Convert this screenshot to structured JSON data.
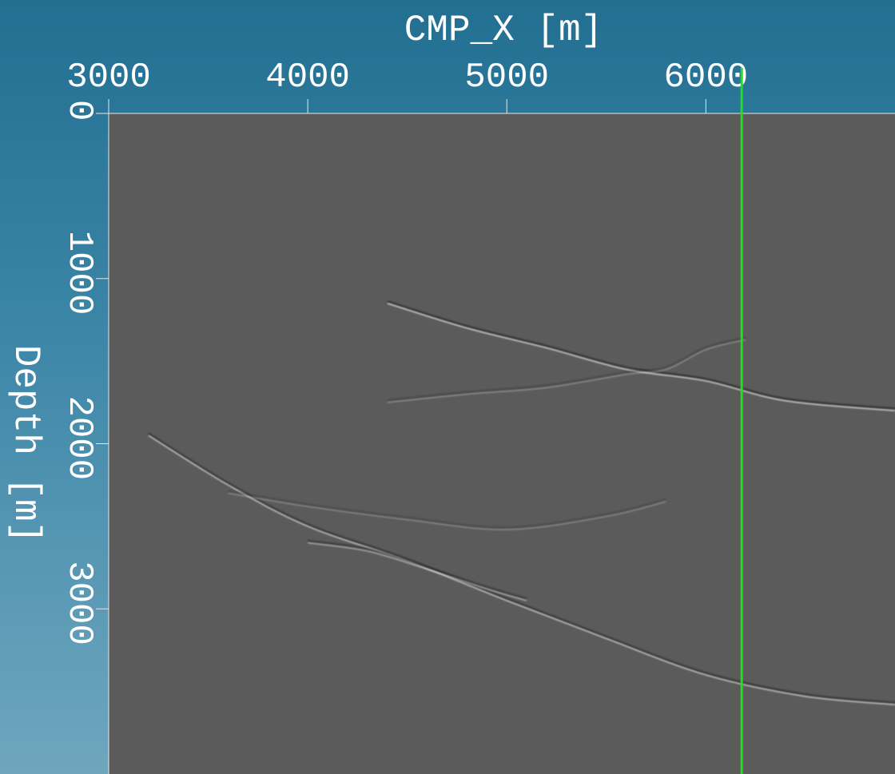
{
  "chart_data": {
    "type": "heatmap",
    "title": "",
    "xlabel": "CMP_X [m]",
    "ylabel": "Depth [m]",
    "x_axis_position": "top",
    "x_ticks": [
      3000,
      4000,
      5000,
      6000
    ],
    "y_ticks": [
      0,
      1000,
      2000,
      3000
    ],
    "x_tick_labels": [
      "3000",
      "4000",
      "5000",
      "6000"
    ],
    "y_tick_labels": [
      "0",
      "1000",
      "2000",
      "3000"
    ],
    "xlim": [
      3000,
      6950
    ],
    "ylim": [
      0,
      4000
    ],
    "y_inverted": true,
    "grid": false,
    "colormap": "grayscale",
    "image_background": "#5b5b5b",
    "marker_line": {
      "x": 6180,
      "color": "#22dd22"
    },
    "reflector_events": [
      {
        "name": "",
        "points": [
          [
            4400,
            1150
          ],
          [
            4800,
            1300
          ],
          [
            5200,
            1420
          ],
          [
            5600,
            1550
          ],
          [
            6000,
            1620
          ],
          [
            6400,
            1740
          ],
          [
            6950,
            1800
          ]
        ]
      },
      {
        "name": "",
        "points": [
          [
            4400,
            1750
          ],
          [
            4800,
            1700
          ],
          [
            5200,
            1660
          ],
          [
            5600,
            1580
          ],
          [
            5800,
            1550
          ],
          [
            6000,
            1430
          ],
          [
            6200,
            1370
          ]
        ]
      },
      {
        "name": "",
        "points": [
          [
            3200,
            1950
          ],
          [
            3600,
            2250
          ],
          [
            4000,
            2500
          ],
          [
            4500,
            2710
          ],
          [
            5000,
            2950
          ],
          [
            5500,
            3180
          ],
          [
            6000,
            3400
          ],
          [
            6500,
            3530
          ],
          [
            6950,
            3580
          ]
        ]
      },
      {
        "name": "",
        "points": [
          [
            3600,
            2300
          ],
          [
            4000,
            2380
          ],
          [
            4500,
            2460
          ],
          [
            5000,
            2520
          ],
          [
            5500,
            2440
          ],
          [
            5800,
            2350
          ]
        ]
      },
      {
        "name": "",
        "points": [
          [
            4000,
            2600
          ],
          [
            4300,
            2650
          ],
          [
            4600,
            2760
          ],
          [
            4900,
            2880
          ],
          [
            5100,
            2950
          ]
        ]
      }
    ]
  }
}
